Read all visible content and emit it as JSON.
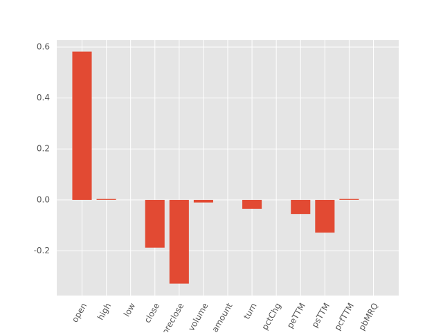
{
  "chart_data": {
    "type": "bar",
    "categories": [
      "open",
      "high",
      "low",
      "close",
      "preclose",
      "volume",
      "amount",
      "turn",
      "pctChg",
      "peTTM",
      "psTTM",
      "pcfTTM",
      "pbMRQ"
    ],
    "values": [
      0.582,
      0.004,
      0,
      -0.187,
      -0.328,
      -0.01,
      0,
      -0.035,
      0,
      -0.055,
      -0.128,
      0.004,
      0
    ],
    "color": "#e24a33",
    "ylim": [
      -0.375,
      0.627
    ],
    "yticks": [
      -0.2,
      {
        "value": 0,
        "label": "0.0"
      },
      0.2,
      0.4,
      0.6
    ],
    "grid": true
  }
}
